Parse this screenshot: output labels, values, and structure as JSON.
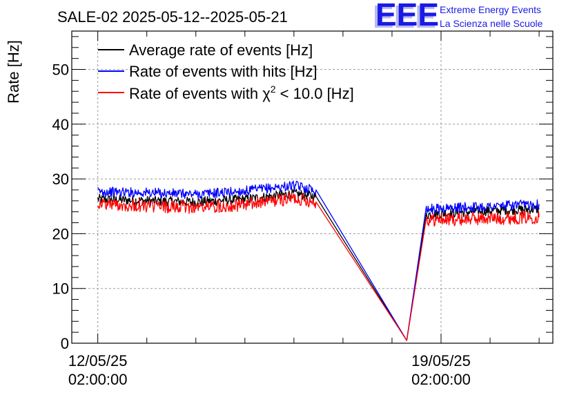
{
  "chart_data": {
    "type": "line",
    "title": "SALE-02 2025-05-12--2025-05-21",
    "ylabel": "Rate [Hz]",
    "xlabel": "",
    "ylim": [
      0,
      57
    ],
    "xlim": [
      -0.53,
      9.28
    ],
    "yticks": [
      0,
      10,
      20,
      30,
      40,
      50
    ],
    "xticks": [
      {
        "value": 0,
        "line1": "12/05/25",
        "line2": "02:00:00"
      },
      {
        "value": 7,
        "line1": "19/05/25",
        "line2": "02:00:00"
      }
    ],
    "grid": true,
    "legend_position": "top-left",
    "series": [
      {
        "name": "Average rate of events [Hz]",
        "color": "#000000",
        "points": [
          [
            0.0,
            26.3
          ],
          [
            1.0,
            26.0
          ],
          [
            2.0,
            25.8
          ],
          [
            3.0,
            26.3
          ],
          [
            4.0,
            27.3
          ],
          [
            4.45,
            26.8
          ],
          [
            6.3,
            0.5
          ],
          [
            6.7,
            23.5
          ],
          [
            8.0,
            24.2
          ],
          [
            9.0,
            24.5
          ]
        ]
      },
      {
        "name": "Rate of events with hits [Hz]",
        "color": "#0000ff",
        "points": [
          [
            0.0,
            27.7
          ],
          [
            1.0,
            27.5
          ],
          [
            2.0,
            27.2
          ],
          [
            3.0,
            27.8
          ],
          [
            4.0,
            28.8
          ],
          [
            4.45,
            28.0
          ],
          [
            6.3,
            0.5
          ],
          [
            6.7,
            24.5
          ],
          [
            8.0,
            25.0
          ],
          [
            9.0,
            25.4
          ]
        ]
      },
      {
        "name": "Rate of events with χ² < 10.0 [Hz]",
        "color": "#ff0000",
        "points": [
          [
            0.0,
            25.5
          ],
          [
            1.0,
            25.0
          ],
          [
            2.0,
            24.8
          ],
          [
            3.0,
            25.3
          ],
          [
            4.0,
            26.5
          ],
          [
            4.45,
            25.8
          ],
          [
            6.3,
            0.5
          ],
          [
            6.7,
            22.5
          ],
          [
            8.0,
            22.8
          ],
          [
            9.0,
            23.0
          ]
        ]
      }
    ],
    "legend": {
      "entry1": "Average rate of events [Hz]",
      "entry2": "Rate of events with hits [Hz]",
      "entry3_prefix": "Rate of events with χ",
      "entry3_sup": "2",
      "entry3_suffix": " < 10.0 [Hz]"
    }
  },
  "logo": {
    "mark": "EEE",
    "line1": "Extreme Energy Events",
    "line2": "La Scienza nelle Scuole",
    "color": "#1a1ae6"
  }
}
